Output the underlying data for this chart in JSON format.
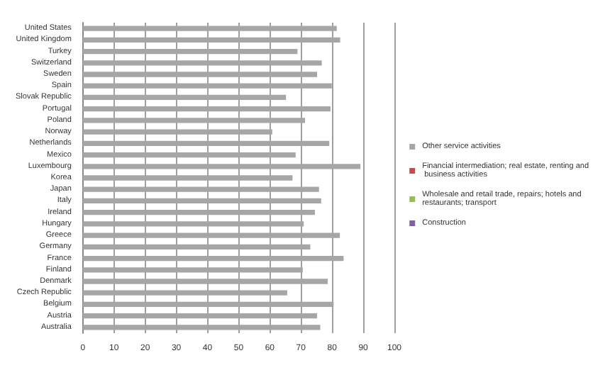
{
  "chart_data": {
    "type": "bar",
    "orientation": "horizontal",
    "stacked": true,
    "categories": [
      "United States",
      "United Kingdom",
      "Turkey",
      "Switzerland",
      "Sweden",
      "Spain",
      "Slovak Republic",
      "Portugal",
      "Poland",
      "Norway",
      "Netherlands",
      "Mexico",
      "Luxembourg",
      "Korea",
      "Japan",
      "Italy",
      "Ireland",
      "Hungary",
      "Greece",
      "Germany",
      "France",
      "Finland",
      "Denmark",
      "Czech Republic",
      "Belgium",
      "Austria",
      "Australia"
    ],
    "series": [
      {
        "name": "Other service activities",
        "color": "#a6a6a6",
        "values": [
          81.5,
          82.6,
          68.9,
          76.7,
          75.2,
          79.9,
          65.2,
          79.5,
          71.3,
          60.8,
          79.1,
          68.3,
          89.1,
          67.3,
          75.8,
          76.5,
          74.5,
          70.9,
          82.5,
          73.0,
          83.7,
          70.6,
          78.6,
          65.6,
          80.5,
          75.2,
          76.2
        ]
      },
      {
        "name": "Financial intermediation; real estate, renting and business activities",
        "color": "#c0504d",
        "values": [
          null,
          null,
          null,
          null,
          null,
          null,
          null,
          null,
          null,
          null,
          null,
          null,
          null,
          null,
          null,
          null,
          null,
          null,
          null,
          null,
          null,
          null,
          null,
          null,
          null,
          null,
          null
        ]
      },
      {
        "name": "Wholesale and retail trade, repairs; hotels and restaurants; transport",
        "color": "#9bbb59",
        "values": [
          null,
          null,
          null,
          null,
          null,
          null,
          null,
          null,
          null,
          null,
          null,
          null,
          null,
          null,
          null,
          null,
          null,
          null,
          null,
          null,
          null,
          null,
          null,
          null,
          null,
          null,
          null
        ]
      },
      {
        "name": "Construction",
        "color": "#8064a2",
        "values": [
          null,
          null,
          null,
          null,
          null,
          null,
          null,
          null,
          null,
          null,
          null,
          null,
          null,
          null,
          null,
          null,
          null,
          null,
          null,
          null,
          null,
          null,
          null,
          null,
          null,
          null,
          null
        ]
      }
    ],
    "xlim": [
      0,
      100
    ],
    "xticks": [
      0,
      10,
      20,
      30,
      40,
      50,
      60,
      70,
      80,
      90,
      100
    ],
    "grid": "x",
    "legend": "right"
  }
}
